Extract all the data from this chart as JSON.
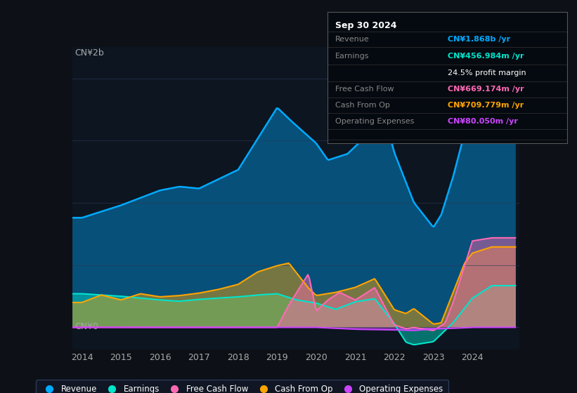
{
  "bg_color": "#0d1117",
  "plot_bg_color": "#0d1520",
  "colors": {
    "revenue": "#00aaff",
    "earnings": "#00e5cc",
    "free_cash_flow": "#ff69b4",
    "cash_from_op": "#ffa500",
    "operating_expenses": "#cc44ff"
  },
  "legend_items": [
    "Revenue",
    "Earnings",
    "Free Cash Flow",
    "Cash From Op",
    "Operating Expenses"
  ],
  "ylabel_top": "CN¥2b",
  "ylabel_bottom": "CN¥0",
  "tooltip": {
    "date": "Sep 30 2024",
    "revenue_label": "Revenue",
    "revenue_value": "CN¥1.868b /yr",
    "earnings_label": "Earnings",
    "earnings_value": "CN¥456.984m /yr",
    "profit_margin": "24.5% profit margin",
    "fcf_label": "Free Cash Flow",
    "fcf_value": "CN¥669.174m /yr",
    "cfo_label": "Cash From Op",
    "cfo_value": "CN¥709.779m /yr",
    "opex_label": "Operating Expenses",
    "opex_value": "CN¥80.050m /yr"
  }
}
